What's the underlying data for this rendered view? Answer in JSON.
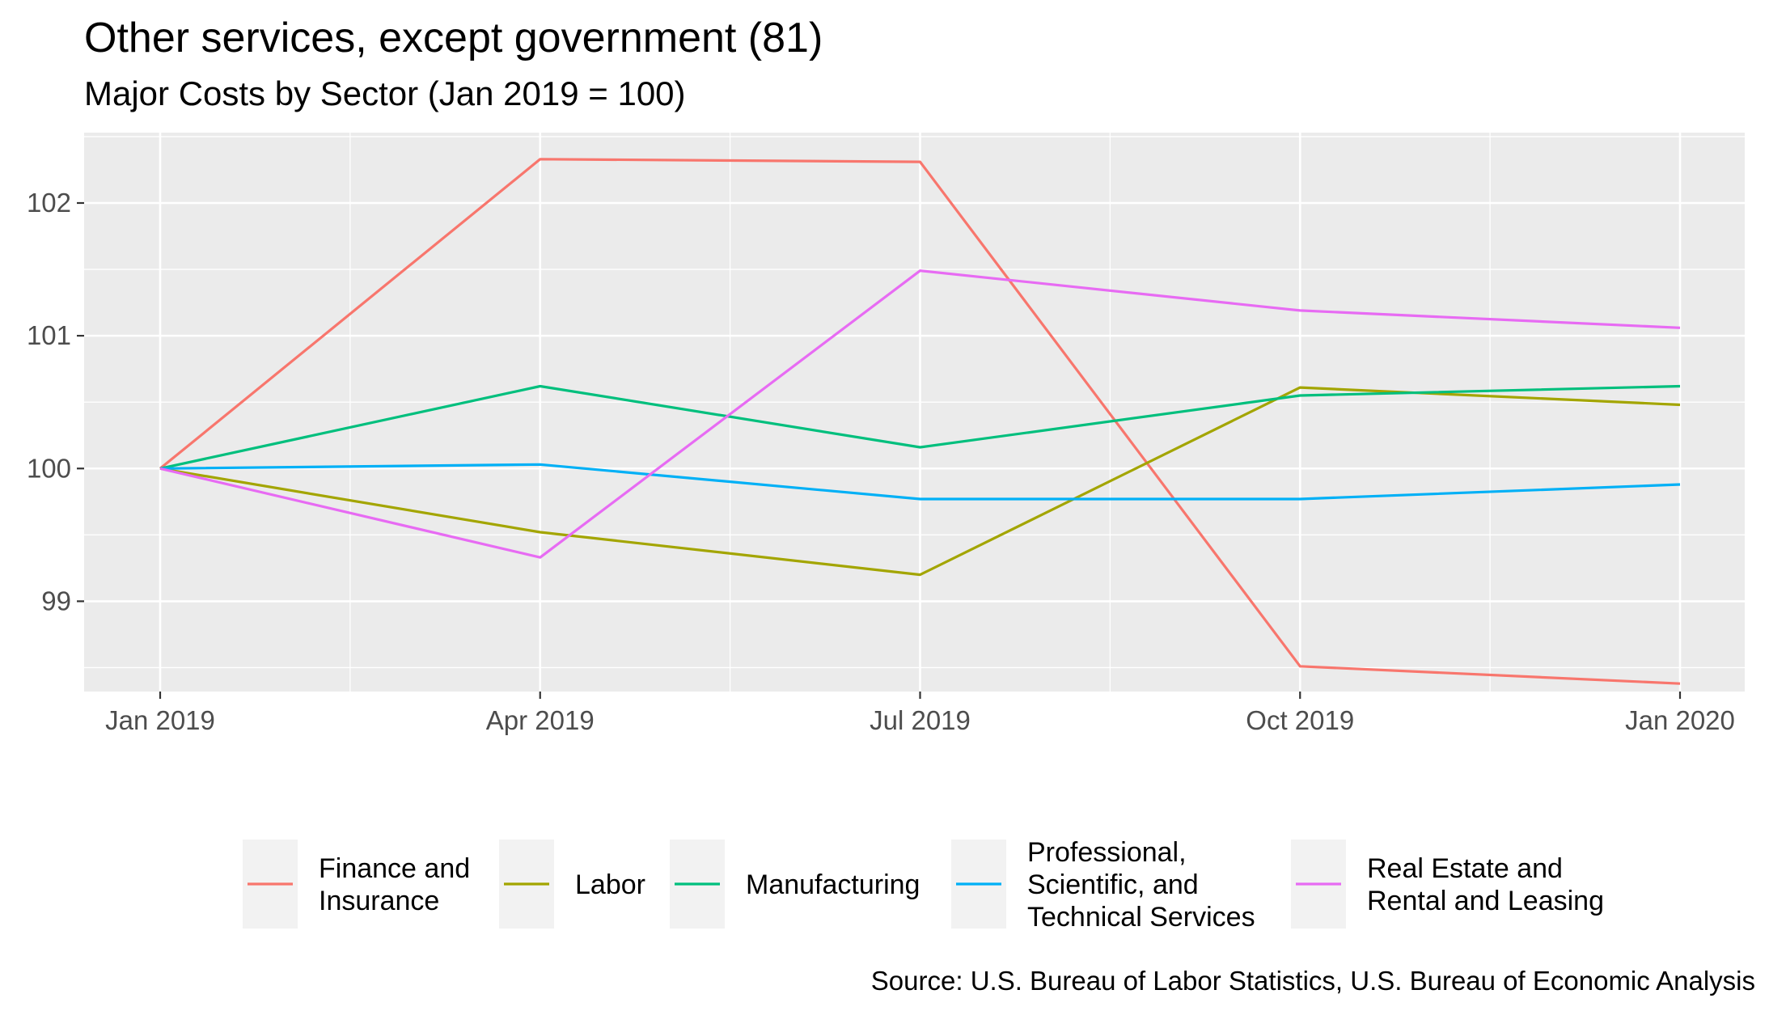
{
  "chart_data": {
    "type": "line",
    "title": "Other services, except government (81)",
    "subtitle": "Major Costs by Sector (Jan 2019 = 100)",
    "caption": "Source: U.S. Bureau of Labor Statistics, U.S. Bureau of Economic Analysis",
    "xlabel": "",
    "ylabel": "",
    "x": [
      "Jan 2019",
      "Apr 2019",
      "Jul 2019",
      "Oct 2019",
      "Jan 2020"
    ],
    "x_ticks": [
      "Jan 2019",
      "Apr 2019",
      "Jul 2019",
      "Oct 2019",
      "Jan 2020"
    ],
    "y_ticks": [
      99,
      100,
      101,
      102
    ],
    "ylim": [
      98.32,
      102.53
    ],
    "grid": true,
    "legend_position": "bottom",
    "series": [
      {
        "name": "Finance and\nInsurance",
        "color": "#F8766D",
        "values": [
          100.0,
          102.33,
          102.31,
          98.51,
          98.38
        ]
      },
      {
        "name": "Labor",
        "color": "#A3A500",
        "values": [
          100.0,
          99.52,
          99.2,
          100.61,
          100.48
        ]
      },
      {
        "name": "Manufacturing",
        "color": "#00BF7D",
        "values": [
          100.0,
          100.62,
          100.16,
          100.55,
          100.62
        ]
      },
      {
        "name": "Professional,\nScientific, and\nTechnical Services",
        "color": "#00B0F6",
        "values": [
          100.0,
          100.03,
          99.77,
          99.77,
          99.88
        ]
      },
      {
        "name": "Real Estate and\nRental and Leasing",
        "color": "#E76BF3",
        "values": [
          100.0,
          99.33,
          101.49,
          101.19,
          101.06
        ]
      }
    ]
  }
}
